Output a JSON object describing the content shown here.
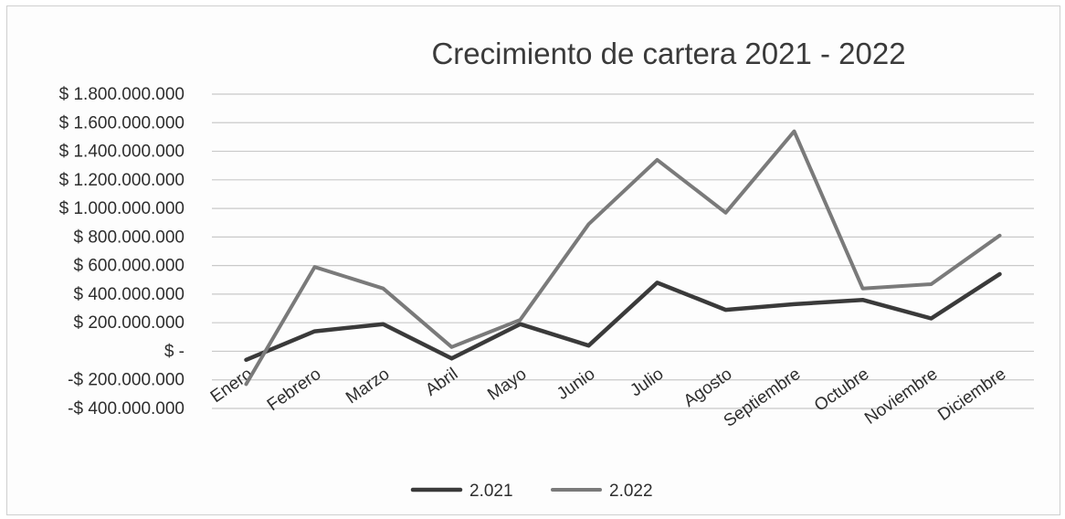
{
  "chart_data": {
    "type": "line",
    "title": "Crecimiento de cartera 2021 - 2022",
    "xlabel": "",
    "ylabel": "",
    "categories": [
      "Enero",
      "Febrero",
      "Marzo",
      "Abril",
      "Mayo",
      "Junio",
      "Julio",
      "Agosto",
      "Septiembre",
      "Octubre",
      "Noviembre",
      "Diciembre"
    ],
    "ylim": [
      -400000000,
      1800000000
    ],
    "ytick_values": [
      1800000000,
      1600000000,
      1400000000,
      1200000000,
      1000000000,
      800000000,
      600000000,
      400000000,
      200000000,
      0,
      -200000000,
      -400000000
    ],
    "ytick_labels": [
      "$ 1.800.000.000",
      "$ 1.600.000.000",
      "$ 1.400.000.000",
      "$ 1.200.000.000",
      "$ 1.000.000.000",
      "$ 800.000.000",
      "$ 600.000.000",
      "$ 400.000.000",
      "$ 200.000.000",
      "$ -",
      "-$ 200.000.000",
      "-$ 400.000.000"
    ],
    "grid": true,
    "legend_position": "bottom",
    "series": [
      {
        "name": "2.021",
        "color": "#3a3a3a",
        "values": [
          -60000000,
          140000000,
          190000000,
          -50000000,
          190000000,
          40000000,
          480000000,
          290000000,
          330000000,
          360000000,
          230000000,
          540000000
        ]
      },
      {
        "name": "2.022",
        "color": "#7a7a7a",
        "values": [
          -230000000,
          590000000,
          440000000,
          30000000,
          220000000,
          890000000,
          1340000000,
          970000000,
          1540000000,
          440000000,
          470000000,
          810000000
        ]
      }
    ]
  }
}
